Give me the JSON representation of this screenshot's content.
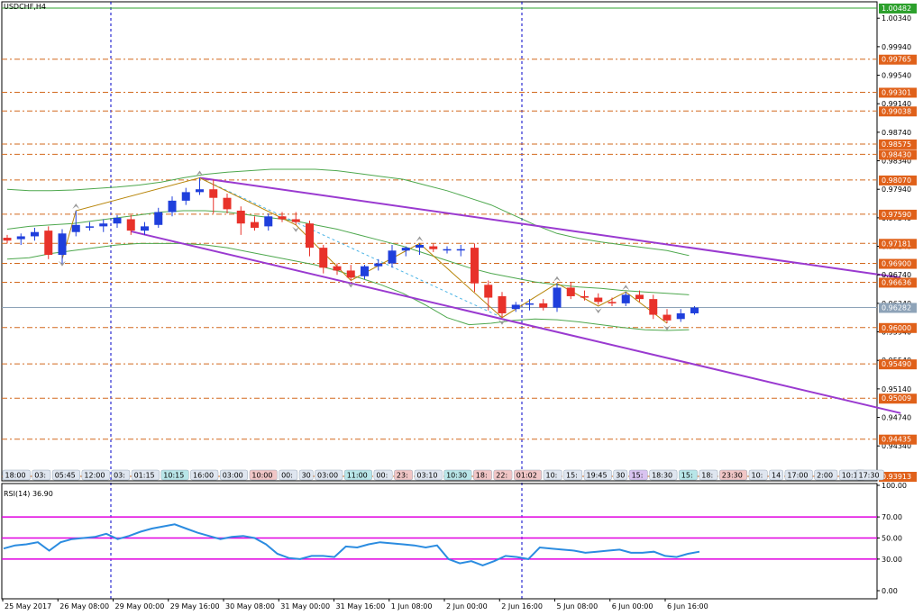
{
  "chart_data": {
    "type": "candlestick",
    "title": "USDCHF,H4",
    "colors": {
      "bull": "#1f3fdc",
      "bear": "#e8322a",
      "background": "#ffffff",
      "grid_dash": "#0000c8",
      "level_line": "#d2691e",
      "channel": "#9a3ad0",
      "bollinger": "#4ea84e",
      "zigzag": "#b8860b",
      "dotted_link": "#4bb4e6",
      "current_price": "#8ea3b8",
      "top_line": "#2ca02c",
      "rsi_line": "#2b8ce0",
      "rsi_levels": "#e000e0"
    },
    "price_range": [
      0.9385,
      1.0057
    ],
    "price_ticks": [
      "1.00340",
      "0.99940",
      "0.99540",
      "0.99140",
      "0.98740",
      "0.98340",
      "0.97940",
      "0.97540",
      "0.97140",
      "0.96740",
      "0.96340",
      "0.95940",
      "0.95540",
      "0.95140",
      "0.94740",
      "0.94340"
    ],
    "level_labels": [
      {
        "text": "1.00482",
        "value": 1.00482,
        "bg": "#2ca02c"
      },
      {
        "text": "0.99765",
        "value": 0.99765,
        "bg": "#e0611a"
      },
      {
        "text": "0.99301",
        "value": 0.99301,
        "bg": "#e0611a"
      },
      {
        "text": "0.99038",
        "value": 0.99038,
        "bg": "#e0611a"
      },
      {
        "text": "0.98575",
        "value": 0.98575,
        "bg": "#e0611a"
      },
      {
        "text": "0.98430",
        "value": 0.9843,
        "bg": "#e0611a"
      },
      {
        "text": "0.98070",
        "value": 0.9807,
        "bg": "#e0611a"
      },
      {
        "text": "0.97590",
        "value": 0.9759,
        "bg": "#e0611a"
      },
      {
        "text": "0.97181",
        "value": 0.97181,
        "bg": "#e0611a"
      },
      {
        "text": "0.96900",
        "value": 0.969,
        "bg": "#e0611a"
      },
      {
        "text": "0.96636",
        "value": 0.96636,
        "bg": "#e0611a"
      },
      {
        "text": "0.96282",
        "value": 0.96282,
        "bg": "#8ea3b8"
      },
      {
        "text": "0.96000",
        "value": 0.96,
        "bg": "#e0611a"
      },
      {
        "text": "0.95490",
        "value": 0.9549,
        "bg": "#e0611a"
      },
      {
        "text": "0.95009",
        "value": 0.95009,
        "bg": "#e0611a"
      },
      {
        "text": "0.94435",
        "value": 0.94435,
        "bg": "#e0611a"
      },
      {
        "text": "0.93913",
        "value": 0.93913,
        "bg": "#e0611a"
      }
    ],
    "candles": [
      {
        "o": 0.9726,
        "h": 0.973,
        "l": 0.9718,
        "c": 0.9722
      },
      {
        "o": 0.9724,
        "h": 0.9732,
        "l": 0.9716,
        "c": 0.9728
      },
      {
        "o": 0.9728,
        "h": 0.974,
        "l": 0.9722,
        "c": 0.9734
      },
      {
        "o": 0.9736,
        "h": 0.9742,
        "l": 0.9696,
        "c": 0.9702
      },
      {
        "o": 0.9702,
        "h": 0.9738,
        "l": 0.969,
        "c": 0.9732
      },
      {
        "o": 0.9734,
        "h": 0.9764,
        "l": 0.9728,
        "c": 0.9744
      },
      {
        "o": 0.9742,
        "h": 0.9748,
        "l": 0.9736,
        "c": 0.9742
      },
      {
        "o": 0.9742,
        "h": 0.9752,
        "l": 0.9734,
        "c": 0.9746
      },
      {
        "o": 0.9746,
        "h": 0.9758,
        "l": 0.974,
        "c": 0.9754
      },
      {
        "o": 0.9752,
        "h": 0.9758,
        "l": 0.973,
        "c": 0.9736
      },
      {
        "o": 0.9736,
        "h": 0.9748,
        "l": 0.973,
        "c": 0.9742
      },
      {
        "o": 0.9744,
        "h": 0.9768,
        "l": 0.974,
        "c": 0.9762
      },
      {
        "o": 0.9762,
        "h": 0.9784,
        "l": 0.9756,
        "c": 0.9778
      },
      {
        "o": 0.9778,
        "h": 0.9796,
        "l": 0.9772,
        "c": 0.979
      },
      {
        "o": 0.979,
        "h": 0.981,
        "l": 0.9786,
        "c": 0.9794
      },
      {
        "o": 0.9794,
        "h": 0.9808,
        "l": 0.976,
        "c": 0.9782
      },
      {
        "o": 0.9782,
        "h": 0.9788,
        "l": 0.976,
        "c": 0.9766
      },
      {
        "o": 0.9764,
        "h": 0.977,
        "l": 0.973,
        "c": 0.9746
      },
      {
        "o": 0.9748,
        "h": 0.9756,
        "l": 0.9736,
        "c": 0.974
      },
      {
        "o": 0.9742,
        "h": 0.976,
        "l": 0.9736,
        "c": 0.9756
      },
      {
        "o": 0.9756,
        "h": 0.9762,
        "l": 0.9748,
        "c": 0.9752
      },
      {
        "o": 0.9752,
        "h": 0.9762,
        "l": 0.9744,
        "c": 0.9748
      },
      {
        "o": 0.9746,
        "h": 0.975,
        "l": 0.97,
        "c": 0.9712
      },
      {
        "o": 0.9712,
        "h": 0.9716,
        "l": 0.9676,
        "c": 0.9684
      },
      {
        "o": 0.9686,
        "h": 0.969,
        "l": 0.9674,
        "c": 0.968
      },
      {
        "o": 0.968,
        "h": 0.9688,
        "l": 0.9666,
        "c": 0.967
      },
      {
        "o": 0.9672,
        "h": 0.9688,
        "l": 0.9668,
        "c": 0.9686
      },
      {
        "o": 0.9686,
        "h": 0.9696,
        "l": 0.968,
        "c": 0.969
      },
      {
        "o": 0.969,
        "h": 0.9716,
        "l": 0.9684,
        "c": 0.9708
      },
      {
        "o": 0.9708,
        "h": 0.9714,
        "l": 0.97,
        "c": 0.9712
      },
      {
        "o": 0.9712,
        "h": 0.9718,
        "l": 0.9702,
        "c": 0.9716
      },
      {
        "o": 0.9714,
        "h": 0.9718,
        "l": 0.9706,
        "c": 0.971
      },
      {
        "o": 0.971,
        "h": 0.9714,
        "l": 0.9704,
        "c": 0.971
      },
      {
        "o": 0.971,
        "h": 0.9716,
        "l": 0.97,
        "c": 0.971
      },
      {
        "o": 0.9712,
        "h": 0.9718,
        "l": 0.965,
        "c": 0.9662
      },
      {
        "o": 0.966,
        "h": 0.9666,
        "l": 0.9624,
        "c": 0.9642
      },
      {
        "o": 0.9644,
        "h": 0.965,
        "l": 0.9614,
        "c": 0.962
      },
      {
        "o": 0.9626,
        "h": 0.9636,
        "l": 0.9622,
        "c": 0.9632
      },
      {
        "o": 0.9632,
        "h": 0.964,
        "l": 0.9624,
        "c": 0.9634
      },
      {
        "o": 0.9634,
        "h": 0.964,
        "l": 0.9624,
        "c": 0.9628
      },
      {
        "o": 0.9628,
        "h": 0.9662,
        "l": 0.9622,
        "c": 0.9656
      },
      {
        "o": 0.9656,
        "h": 0.9664,
        "l": 0.964,
        "c": 0.9644
      },
      {
        "o": 0.9644,
        "h": 0.9652,
        "l": 0.9638,
        "c": 0.9642
      },
      {
        "o": 0.9642,
        "h": 0.9648,
        "l": 0.9632,
        "c": 0.9636
      },
      {
        "o": 0.9636,
        "h": 0.9642,
        "l": 0.963,
        "c": 0.9634
      },
      {
        "o": 0.9634,
        "h": 0.965,
        "l": 0.963,
        "c": 0.9646
      },
      {
        "o": 0.9646,
        "h": 0.9652,
        "l": 0.9636,
        "c": 0.964
      },
      {
        "o": 0.964,
        "h": 0.9646,
        "l": 0.9612,
        "c": 0.9618
      },
      {
        "o": 0.9618,
        "h": 0.9626,
        "l": 0.9606,
        "c": 0.961
      },
      {
        "o": 0.9612,
        "h": 0.9626,
        "l": 0.9608,
        "c": 0.962
      },
      {
        "o": 0.962,
        "h": 0.963,
        "l": 0.9618,
        "c": 0.9628
      }
    ],
    "bollinger": {
      "upper": [
        0.9794,
        0.9792,
        0.9792,
        0.9793,
        0.9795,
        0.9797,
        0.98,
        0.9804,
        0.981,
        0.9815,
        0.9818,
        0.982,
        0.9822,
        0.9822,
        0.9822,
        0.982,
        0.9816,
        0.9812,
        0.9808,
        0.98,
        0.9792,
        0.9782,
        0.9772,
        0.9758,
        0.9744,
        0.9732,
        0.9725,
        0.972,
        0.9716,
        0.9712,
        0.9708,
        0.9701
      ],
      "middle": [
        0.9738,
        0.9742,
        0.9744,
        0.9746,
        0.975,
        0.9754,
        0.9758,
        0.9762,
        0.9764,
        0.9764,
        0.9762,
        0.9758,
        0.9754,
        0.975,
        0.9744,
        0.9738,
        0.973,
        0.9722,
        0.9714,
        0.9704,
        0.9694,
        0.9684,
        0.9676,
        0.967,
        0.9664,
        0.966,
        0.9657,
        0.9655,
        0.9652,
        0.965,
        0.9648,
        0.9646
      ],
      "lower": [
        0.9696,
        0.9698,
        0.9704,
        0.9708,
        0.9712,
        0.9716,
        0.9718,
        0.9718,
        0.9718,
        0.9716,
        0.9712,
        0.9706,
        0.97,
        0.9694,
        0.9688,
        0.968,
        0.967,
        0.966,
        0.9648,
        0.9632,
        0.9614,
        0.9604,
        0.9606,
        0.961,
        0.9612,
        0.9611,
        0.9608,
        0.9604,
        0.96,
        0.9597,
        0.9596,
        0.9597
      ],
      "sample_every_candles": 1.6
    },
    "channel": [
      {
        "from": [
          14,
          0.981
        ],
        "to": [
          65,
          0.967
        ]
      },
      {
        "from": [
          9,
          0.9735
        ],
        "to": [
          65,
          0.948
        ]
      }
    ],
    "zigzag": [
      [
        4,
        0.9696
      ],
      [
        5,
        0.9764
      ],
      [
        14,
        0.981
      ],
      [
        21,
        0.9744
      ],
      [
        25,
        0.9666
      ],
      [
        30,
        0.9718
      ],
      [
        36,
        0.9614
      ],
      [
        40,
        0.9662
      ],
      [
        43,
        0.963
      ],
      [
        45,
        0.965
      ],
      [
        48,
        0.9606
      ]
    ],
    "time_labels": [
      "25 May 2017",
      "26 May 08:00",
      "29 May 00:00",
      "29 May 16:00",
      "30 May 08:00",
      "31 May 00:00",
      "31 May 16:00",
      "1 Jun 08:00",
      "2 Jun 00:00",
      "2 Jun 16:00",
      "5 Jun 08:00",
      "6 Jun 00:00",
      "6 Jun 16:00"
    ],
    "session_tags": [
      {
        "text": "18:00",
        "bg": "#dfe6f0"
      },
      {
        "text": "03:",
        "bg": "#dfe6f0"
      },
      {
        "text": "05:45",
        "bg": "#dfe6f0"
      },
      {
        "text": "12:00",
        "bg": "#dfe6f0"
      },
      {
        "text": "03:",
        "bg": "#dfe6f0"
      },
      {
        "text": "01:15",
        "bg": "#dfe6f0"
      },
      {
        "text": "10:15",
        "bg": "#b8e6e8"
      },
      {
        "text": "16:00",
        "bg": "#dfe6f0"
      },
      {
        "text": "03:00",
        "bg": "#dfe6f0"
      },
      {
        "text": "10:00",
        "bg": "#f1c6c6"
      },
      {
        "text": "00:",
        "bg": "#dfe6f0"
      },
      {
        "text": "30",
        "bg": "#dfe6f0"
      },
      {
        "text": "03:00",
        "bg": "#dfe6f0"
      },
      {
        "text": "11:00",
        "bg": "#b8e6e8"
      },
      {
        "text": "00:",
        "bg": "#dfe6f0"
      },
      {
        "text": "23:",
        "bg": "#f1c6c6"
      },
      {
        "text": "03:10",
        "bg": "#dfe6f0"
      },
      {
        "text": "10:30",
        "bg": "#b8e6e8"
      },
      {
        "text": "18:",
        "bg": "#f1c6c6"
      },
      {
        "text": "22:",
        "bg": "#f1c6c6"
      },
      {
        "text": "01:02",
        "bg": "#f1c6c6"
      },
      {
        "text": "10:",
        "bg": "#dfe6f0"
      },
      {
        "text": "15:",
        "bg": "#dfe6f0"
      },
      {
        "text": "19:45",
        "bg": "#dfe6f0"
      },
      {
        "text": "30",
        "bg": "#dfe6f0"
      },
      {
        "text": "15:",
        "bg": "#d9c3f0"
      },
      {
        "text": "18:30",
        "bg": "#dfe6f0"
      },
      {
        "text": "15:",
        "bg": "#b8e6e8"
      },
      {
        "text": "18:",
        "bg": "#dfe6f0"
      },
      {
        "text": "23:30",
        "bg": "#f1c6c6"
      },
      {
        "text": "10:",
        "bg": "#dfe6f0"
      },
      {
        "text": "14",
        "bg": "#dfe6f0"
      },
      {
        "text": "17:00",
        "bg": "#dfe6f0"
      },
      {
        "text": "2:00",
        "bg": "#dfe6f0"
      },
      {
        "text": "10:1",
        "bg": "#dfe6f0"
      },
      {
        "text": "1",
        "bg": "#dfe6f0"
      },
      {
        "text": "17:30",
        "bg": "#dfe6f0"
      }
    ],
    "rsi": {
      "label": "RSI(14) 36.90",
      "range": [
        0,
        100
      ],
      "ticks": [
        "100.00",
        "70.00",
        "50.00",
        "30.00",
        "0.00"
      ],
      "levels": [
        70,
        50,
        30
      ],
      "values": [
        40,
        43,
        44,
        46,
        38,
        46,
        49,
        50,
        51,
        54,
        49,
        52,
        56,
        59,
        61,
        63,
        59,
        55,
        52,
        49,
        51,
        52,
        50,
        44,
        35,
        31,
        30,
        33,
        33,
        32,
        42,
        41,
        44,
        46,
        45,
        44,
        43,
        41,
        43,
        30,
        26,
        28,
        24,
        28,
        33,
        32,
        30,
        41,
        40,
        39,
        38,
        36,
        37,
        38,
        39,
        36,
        36,
        37,
        33,
        32,
        35,
        37
      ]
    }
  }
}
